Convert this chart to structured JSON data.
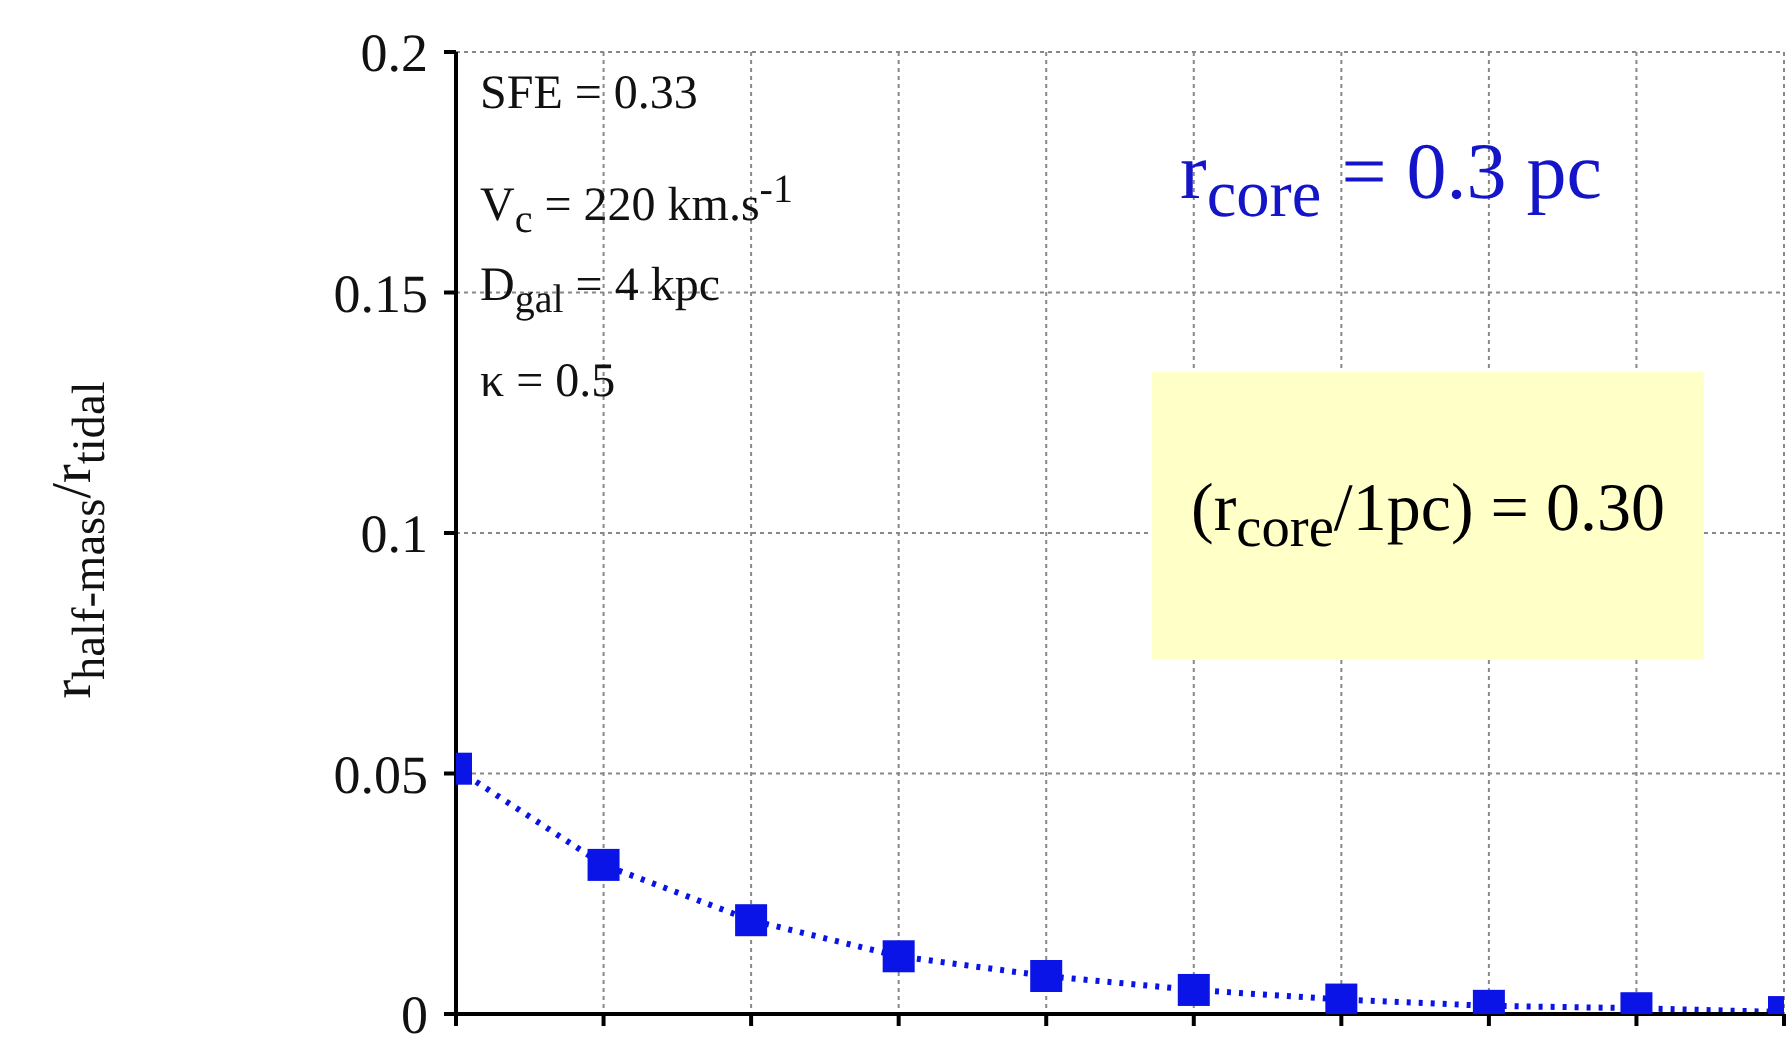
{
  "chart_data": {
    "type": "line",
    "ylabel": "r$_{half-mass}$/r$_{tidal}$",
    "categories": [
      null,
      null,
      null,
      null,
      null,
      null,
      null,
      null,
      null,
      null
    ],
    "series": [
      {
        "color": "#0a14e6",
        "values": [
          0.051,
          0.031,
          0.0195,
          0.012,
          0.0079,
          0.005,
          0.003,
          0.0017,
          0.0012,
          0.0004
        ]
      }
    ],
    "ylim": [
      0,
      0.2
    ],
    "yticks": [
      0,
      0.05,
      0.15,
      0.1,
      0.2
    ],
    "annotations": [
      "SFE = 0.33",
      "V$_{c}$ = 220 km.s$^{-1}$",
      "D$_{gal}$ = 4 kpc",
      "κ = 0.5",
      "r$_{core}$ = 0.3 pc",
      "(r$_{core}$/1pc) = 0.30"
    ],
    "grid": true,
    "legend": false,
    "tick_labels": "y",
    "marker": "square",
    "line_style": "dotted"
  }
}
